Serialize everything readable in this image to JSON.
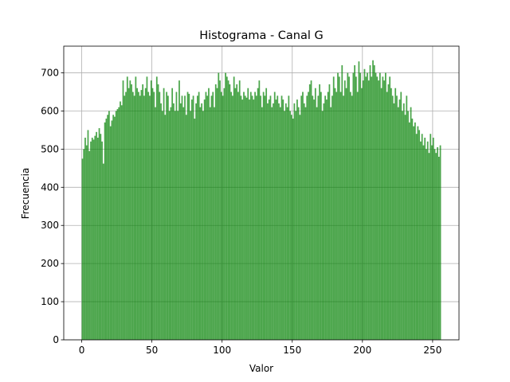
{
  "chart_data": {
    "type": "histogram",
    "title": "Histograma - Canal G",
    "xlabel": "Valor",
    "ylabel": "Frecuencia",
    "color": "#008000",
    "alpha": 0.7,
    "grid": true,
    "xlim": [
      -12.8,
      268.8
    ],
    "ylim": [
      0,
      770
    ],
    "xticks": [
      0,
      50,
      100,
      150,
      200,
      250
    ],
    "yticks": [
      0,
      100,
      200,
      300,
      400,
      500,
      600,
      700
    ],
    "bins": [
      0,
      1,
      2,
      3,
      4,
      5,
      6,
      7,
      8,
      9,
      10,
      11,
      12,
      13,
      14,
      15,
      16,
      17,
      18,
      19,
      20,
      21,
      22,
      23,
      24,
      25,
      26,
      27,
      28,
      29,
      30,
      31,
      32,
      33,
      34,
      35,
      36,
      37,
      38,
      39,
      40,
      41,
      42,
      43,
      44,
      45,
      46,
      47,
      48,
      49,
      50,
      51,
      52,
      53,
      54,
      55,
      56,
      57,
      58,
      59,
      60,
      61,
      62,
      63,
      64,
      65,
      66,
      67,
      68,
      69,
      70,
      71,
      72,
      73,
      74,
      75,
      76,
      77,
      78,
      79,
      80,
      81,
      82,
      83,
      84,
      85,
      86,
      87,
      88,
      89,
      90,
      91,
      92,
      93,
      94,
      95,
      96,
      97,
      98,
      99,
      100,
      101,
      102,
      103,
      104,
      105,
      106,
      107,
      108,
      109,
      110,
      111,
      112,
      113,
      114,
      115,
      116,
      117,
      118,
      119,
      120,
      121,
      122,
      123,
      124,
      125,
      126,
      127,
      128,
      129,
      130,
      131,
      132,
      133,
      134,
      135,
      136,
      137,
      138,
      139,
      140,
      141,
      142,
      143,
      144,
      145,
      146,
      147,
      148,
      149,
      150,
      151,
      152,
      153,
      154,
      155,
      156,
      157,
      158,
      159,
      160,
      161,
      162,
      163,
      164,
      165,
      166,
      167,
      168,
      169,
      170,
      171,
      172,
      173,
      174,
      175,
      176,
      177,
      178,
      179,
      180,
      181,
      182,
      183,
      184,
      185,
      186,
      187,
      188,
      189,
      190,
      191,
      192,
      193,
      194,
      195,
      196,
      197,
      198,
      199,
      200,
      201,
      202,
      203,
      204,
      205,
      206,
      207,
      208,
      209,
      210,
      211,
      212,
      213,
      214,
      215,
      216,
      217,
      218,
      219,
      220,
      221,
      222,
      223,
      224,
      225,
      226,
      227,
      228,
      229,
      230,
      231,
      232,
      233,
      234,
      235,
      236,
      237,
      238,
      239,
      240,
      241,
      242,
      243,
      244,
      245,
      246,
      247,
      248,
      249,
      250,
      251,
      252,
      253,
      254,
      255,
      256
    ],
    "values": [
      475,
      500,
      530,
      510,
      550,
      495,
      520,
      530,
      525,
      535,
      545,
      530,
      555,
      540,
      520,
      462,
      570,
      580,
      590,
      600,
      560,
      575,
      590,
      585,
      600,
      605,
      610,
      625,
      615,
      680,
      640,
      650,
      690,
      660,
      680,
      670,
      650,
      640,
      690,
      660,
      650,
      640,
      655,
      670,
      640,
      660,
      690,
      650,
      640,
      680,
      660,
      650,
      610,
      690,
      670,
      650,
      620,
      600,
      660,
      590,
      650,
      640,
      600,
      610,
      660,
      620,
      600,
      650,
      600,
      680,
      620,
      640,
      610,
      640,
      590,
      650,
      645,
      600,
      630,
      640,
      580,
      620,
      640,
      650,
      610,
      620,
      600,
      630,
      650,
      640,
      660,
      610,
      640,
      650,
      610,
      670,
      660,
      700,
      680,
      650,
      640,
      660,
      700,
      690,
      680,
      670,
      650,
      640,
      690,
      660,
      670,
      650,
      680,
      640,
      630,
      650,
      640,
      635,
      660,
      630,
      650,
      640,
      630,
      650,
      640,
      660,
      680,
      640,
      610,
      650,
      640,
      660,
      620,
      630,
      640,
      610,
      620,
      650,
      630,
      640,
      620,
      610,
      640,
      630,
      600,
      620,
      610,
      640,
      600,
      590,
      580,
      620,
      600,
      630,
      610,
      590,
      640,
      650,
      620,
      610,
      640,
      650,
      670,
      680,
      640,
      630,
      660,
      610,
      640,
      670,
      650,
      600,
      620,
      640,
      630,
      650,
      670,
      610,
      640,
      690,
      660,
      650,
      700,
      690,
      650,
      720,
      640,
      680,
      660,
      700,
      690,
      650,
      640,
      700,
      720,
      690,
      650,
      730,
      700,
      660,
      680,
      710,
      690,
      700,
      680,
      720,
      690,
      733,
      720,
      700,
      690,
      680,
      700,
      660,
      690,
      680,
      700,
      650,
      670,
      690,
      660,
      640,
      620,
      660,
      640,
      610,
      630,
      650,
      600,
      620,
      590,
      640,
      600,
      570,
      610,
      580,
      560,
      570,
      540,
      560,
      550,
      520,
      540,
      510,
      530,
      500,
      520,
      490,
      540,
      510,
      530,
      500,
      490,
      505,
      480,
      510
    ]
  }
}
